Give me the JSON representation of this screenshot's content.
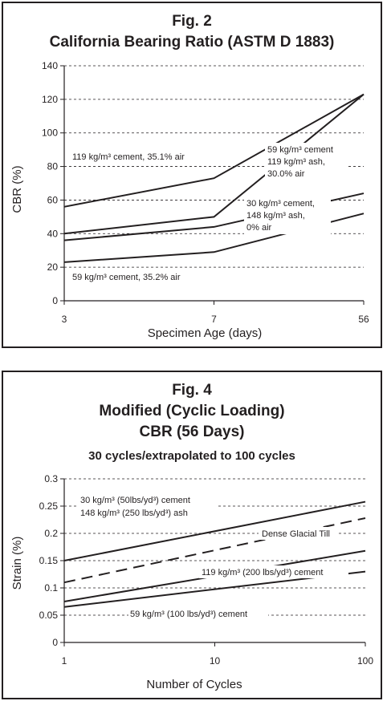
{
  "charts": [
    {
      "fig_label": "Fig. 2",
      "title": "California Bearing Ratio (ASTM D 1883)",
      "xlabel": "Specimen Age (days)",
      "ylabel": "CBR (%)"
    },
    {
      "fig_label": "Fig. 4",
      "title_line1": "Modified (Cyclic Loading)",
      "title_line2": "CBR (56 Days)",
      "subtitle": "30 cycles/extrapolated to 100 cycles",
      "xlabel": "Number of Cycles",
      "ylabel": "Strain (%)"
    }
  ],
  "chart_data": [
    {
      "type": "line",
      "title": "California Bearing Ratio (ASTM D 1883)",
      "xlabel": "Specimen Age (days)",
      "ylabel": "CBR (%)",
      "categories": [
        "3",
        "7",
        "56"
      ],
      "ylim": [
        0,
        140
      ],
      "yticks": [
        "0",
        "20",
        "40",
        "60",
        "80",
        "100",
        "120",
        "140"
      ],
      "grid": "dashed horizontal",
      "series": [
        {
          "values": [
            56,
            73,
            123
          ],
          "label": "119 kg/m³ cement, 35.1% air"
        },
        {
          "values": [
            40,
            50,
            123
          ],
          "label": "59 kg/m³ cement 119 kg/m³ ash, 30.0% air"
        },
        {
          "values": [
            36,
            44,
            64
          ],
          "label": "30 kg/m³ cement, 148 kg/m³ ash, 0% air"
        },
        {
          "values": [
            23,
            29,
            52
          ],
          "label": "59 kg/m³ cement, 35.2% air"
        }
      ],
      "annotations": {
        "a1": "119 kg/m³ cement, 35.1% air",
        "a2_l1": "59 kg/m³ cement",
        "a2_l2": "119 kg/m³ ash,",
        "a2_l3": "30.0% air",
        "a3_l1": "30 kg/m³ cement,",
        "a3_l2": "148 kg/m³ ash,",
        "a3_l3": "0% air",
        "a4": "59 kg/m³ cement, 35.2% air"
      }
    },
    {
      "type": "line",
      "title": "Modified (Cyclic Loading) CBR (56 Days)",
      "subtitle": "30 cycles/extrapolated to 100 cycles",
      "xlabel": "Number of Cycles",
      "ylabel": "Strain (%)",
      "xscale": "log",
      "xlim": [
        1,
        100
      ],
      "xticks": [
        "1",
        "10",
        "100"
      ],
      "ylim": [
        0,
        0.3
      ],
      "yticks": [
        "0",
        "0.05",
        "0.1",
        "0.15",
        "0.2",
        "0.25",
        "0.3"
      ],
      "grid": "dashed horizontal",
      "series": [
        {
          "x": [
            1,
            100
          ],
          "values": [
            0.15,
            0.258
          ],
          "style": "solid",
          "label": "30 kg/m³ (50lbs/yd³) cement 148 kg/m³ (250 lbs/yd³) ash"
        },
        {
          "x": [
            1,
            100
          ],
          "values": [
            0.11,
            0.228
          ],
          "style": "dashed",
          "label": "Dense Glacial Till"
        },
        {
          "x": [
            1,
            100
          ],
          "values": [
            0.075,
            0.168
          ],
          "style": "solid",
          "label": "119 kg/m³ (200 lbs/yd³) cement"
        },
        {
          "x": [
            1,
            100
          ],
          "values": [
            0.065,
            0.13
          ],
          "style": "solid",
          "label": "59 kg/m³ (100 lbs/yd³) cement"
        }
      ],
      "annotations": {
        "b1_l1": "30 kg/m³ (50lbs/yd³) cement",
        "b1_l2": "148 kg/m³ (250 lbs/yd³) ash",
        "b2": "Dense Glacial Till",
        "b3": "119 kg/m³ (200 lbs/yd³) cement",
        "b4": "59 kg/m³ (100 lbs/yd³) cement"
      }
    }
  ]
}
